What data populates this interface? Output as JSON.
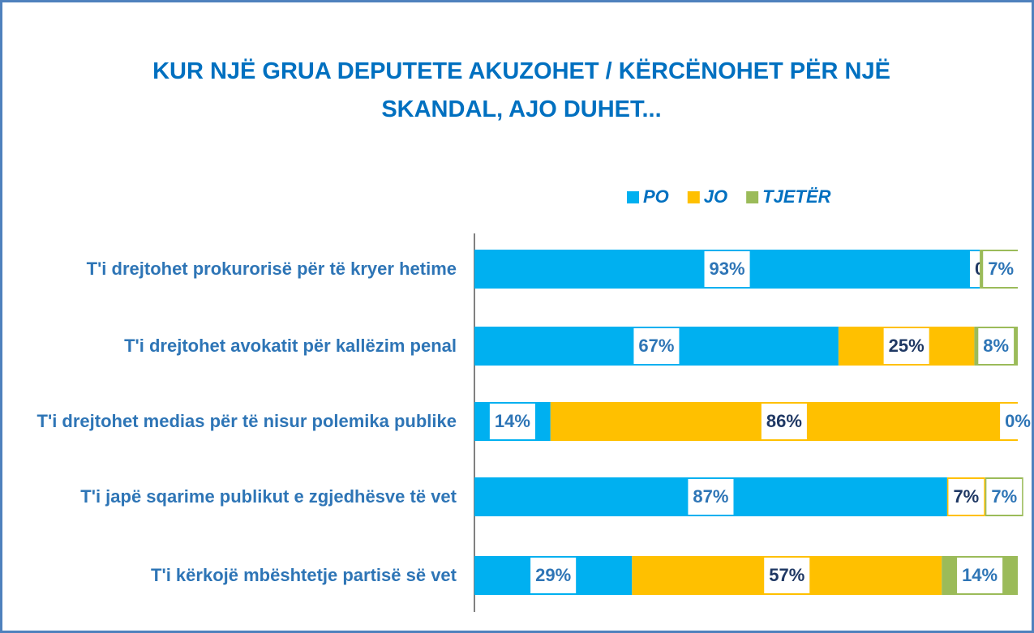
{
  "chart_data": {
    "type": "stacked-bar",
    "title": "KUR NJË GRUA DEPUTETE AKUZOHET / KËRCËNOHET PËR NJË SKANDAL, AJO DUHET...",
    "categories": [
      "T'i drejtohet prokurorisë për të kryer hetime",
      "T'i drejtohet avokatit për kallëzim penal",
      "T'i drejtohet medias për të nisur polemika publike",
      "T'i japë sqarime publikut e zgjedhësve të vet",
      "T'i kërkojë mbështetje partisë së vet"
    ],
    "series": [
      {
        "name": "PO",
        "color": "#00b0f0",
        "values": [
          93,
          67,
          14,
          87,
          29
        ],
        "value_labels": [
          "93%",
          "67%",
          "14%",
          "87%",
          "29%"
        ]
      },
      {
        "name": "JO",
        "color": "#ffc000",
        "values": [
          0,
          25,
          86,
          7,
          57
        ],
        "value_labels": [
          "0",
          "25%",
          "86%",
          "7%",
          "57%"
        ]
      },
      {
        "name": "TJETËR",
        "color": "#9bbb59",
        "values": [
          7,
          8,
          0,
          7,
          14
        ],
        "value_labels": [
          "7%",
          "8%",
          "0%",
          "7%",
          "14%"
        ]
      }
    ],
    "xlim": [
      0,
      100
    ],
    "legend": "top"
  }
}
